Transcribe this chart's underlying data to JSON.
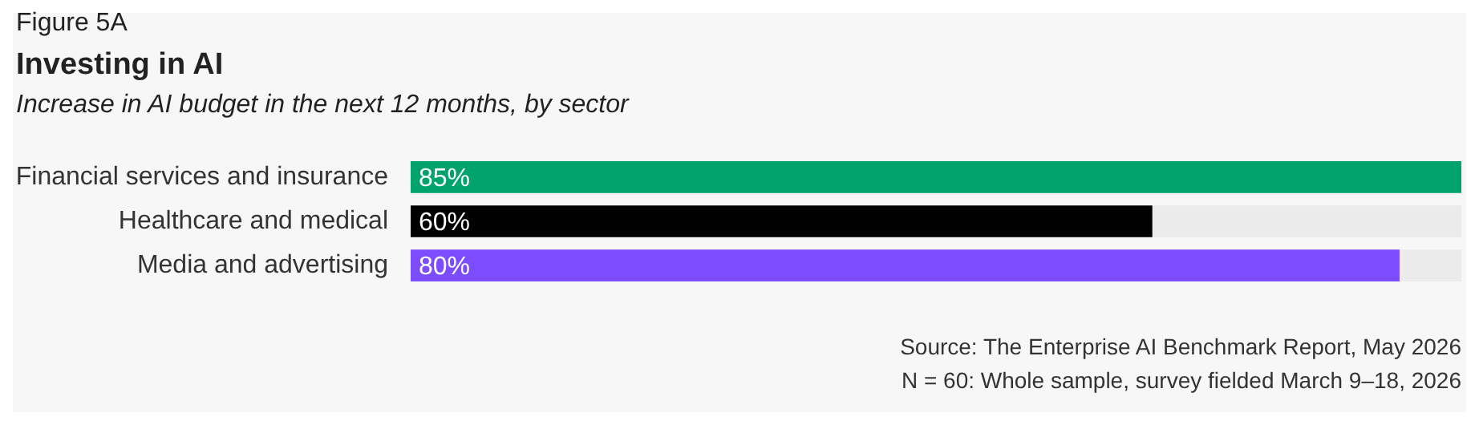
{
  "chart_data": {
    "type": "bar",
    "orientation": "horizontal",
    "title": "Investing in AI",
    "subtitle": "Increase in AI budget in the next 12 months, by sector",
    "categories": [
      "Financial services and insurance",
      "Healthcare and medical",
      "Media and advertising"
    ],
    "values": [
      85,
      60,
      80
    ],
    "colors": [
      "#00a36c",
      "#000000",
      "#7c4dff"
    ],
    "value_labels": [
      "85%",
      "60%",
      "80%"
    ],
    "xlim": [
      0,
      85
    ],
    "tick_labels": "y",
    "legend": false,
    "annotations": [
      "Figure 5A",
      "Source: The Enterprise AI Benchmark Report, May 2026",
      "N = 60: Whole sample, survey fielded March 9–18, 2026"
    ]
  }
}
